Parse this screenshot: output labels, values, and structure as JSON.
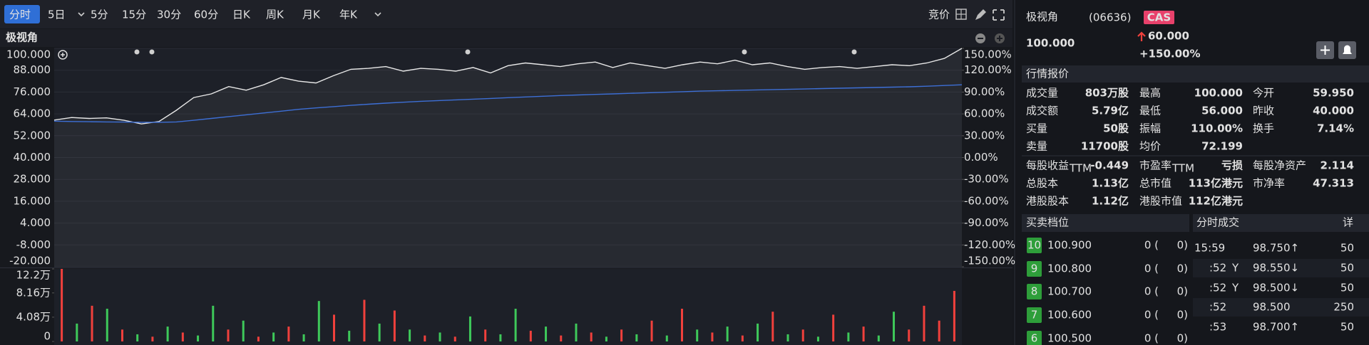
{
  "toolbar": {
    "tabs": [
      "分时",
      "5日",
      "5分",
      "15分",
      "30分",
      "60分",
      "日K",
      "周K",
      "月K",
      "年K"
    ],
    "auction": "竞价"
  },
  "chart_data": [
    {
      "type": "line",
      "title": "极视角",
      "ylim": [
        -20,
        100
      ],
      "yticks": [
        {
          "value": 100,
          "label": "100.000"
        },
        {
          "value": 88,
          "label": "88.000"
        },
        {
          "value": 76,
          "label": "76.000"
        },
        {
          "value": 64,
          "label": "64.000"
        },
        {
          "value": 52,
          "label": "52.000"
        },
        {
          "value": 40,
          "label": "40.000"
        },
        {
          "value": 28,
          "label": "28.000"
        },
        {
          "value": 16,
          "label": "16.000"
        },
        {
          "value": 4,
          "label": "4.000"
        },
        {
          "value": -8,
          "label": "-8.000"
        },
        {
          "value": -20,
          "label": "-20.000"
        }
      ],
      "y2lim": [
        -150,
        150
      ],
      "y2ticks": [
        {
          "value": 150,
          "label": "150.00%"
        },
        {
          "value": 120,
          "label": "120.00%"
        },
        {
          "value": 90,
          "label": "90.00%"
        },
        {
          "value": 60,
          "label": "60.00%"
        },
        {
          "value": 30,
          "label": "30.00%"
        },
        {
          "value": 0,
          "label": "0.00%"
        },
        {
          "value": -30,
          "label": "-30.00%"
        },
        {
          "value": -60,
          "label": "-60.00%"
        },
        {
          "value": -90,
          "label": "-90.00%"
        },
        {
          "value": -120,
          "label": "-120.00%"
        },
        {
          "value": -150,
          "label": "-150.00%"
        }
      ],
      "grid": true,
      "series": [
        {
          "color": "#e8e8e8",
          "values": [
            60.6,
            62,
            61.5,
            61.8,
            60.5,
            58.5,
            59.8,
            66,
            73,
            75,
            79,
            77,
            80,
            84,
            82,
            81,
            85,
            88.5,
            89,
            90,
            87.5,
            89,
            88.5,
            87.5,
            89.5,
            86.5,
            90.5,
            92,
            91,
            90,
            91.5,
            92.5,
            89.5,
            92,
            90.5,
            89,
            91,
            92.5,
            91.5,
            93.5,
            91,
            92,
            90,
            88.5,
            89.5,
            90,
            89,
            90,
            91,
            90.5,
            92,
            94.5,
            100
          ]
        },
        {
          "color": "#3d6fd6",
          "values": [
            60,
            59.8,
            59.7,
            59.6,
            59.5,
            59.4,
            59.4,
            59.6,
            60.5,
            61.5,
            62.5,
            63.5,
            64.5,
            65.5,
            66.5,
            67.3,
            68,
            68.7,
            69.3,
            69.9,
            70.4,
            70.9,
            71.3,
            71.7,
            72.1,
            72.5,
            72.9,
            73.3,
            73.7,
            74.1,
            74.4,
            74.7,
            75,
            75.3,
            75.6,
            75.9,
            76.2,
            76.5,
            76.7,
            76.9,
            77.1,
            77.3,
            77.5,
            77.7,
            77.9,
            78.1,
            78.3,
            78.5,
            78.7,
            78.9,
            79.2,
            79.6,
            80
          ]
        }
      ]
    },
    {
      "type": "bar",
      "ylim": [
        0,
        122000
      ],
      "yticks": [
        {
          "value": 122000,
          "label": "12.2万"
        },
        {
          "value": 81600,
          "label": "8.16万"
        },
        {
          "value": 40800,
          "label": "4.08万"
        },
        0
      ],
      "series": [
        {
          "color": "#f0403c",
          "values": [
            122000,
            null,
            60000,
            null,
            20000,
            null,
            8000,
            null,
            15000,
            null,
            null,
            20000,
            null,
            8000,
            null,
            25000,
            null,
            null,
            45000,
            null,
            70000,
            null,
            52000,
            null,
            10000,
            null,
            8000,
            null,
            20000,
            null,
            null,
            18000,
            null,
            10000,
            null,
            15000,
            null,
            20000,
            null,
            35000,
            null,
            55000,
            null,
            15000,
            null,
            10000,
            null,
            50000,
            null,
            20000,
            null,
            45000,
            null,
            25000,
            null,
            null,
            20000,
            60000,
            35000,
            85000
          ]
        },
        {
          "color": "#3ec95a",
          "values": [
            null,
            30000,
            null,
            55000,
            null,
            12000,
            null,
            25000,
            null,
            10000,
            60000,
            null,
            35000,
            null,
            15000,
            null,
            12000,
            68000,
            null,
            18000,
            null,
            30000,
            null,
            20000,
            null,
            15000,
            null,
            42000,
            null,
            12000,
            55000,
            null,
            25000,
            null,
            30000,
            null,
            8000,
            null,
            12000,
            null,
            10000,
            null,
            20000,
            null,
            25000,
            null,
            30000,
            null,
            12000,
            null,
            8000,
            null,
            15000,
            null,
            10000,
            50000,
            null,
            null,
            null,
            null
          ]
        }
      ]
    }
  ],
  "quote": {
    "name": "极视角",
    "code": "(06636)",
    "badge": "CAS",
    "price": "100.000",
    "change": "60.000",
    "change_pct": "+150.00%",
    "section": "行情报价",
    "rows": [
      [
        {
          "label": "成交量",
          "value": "803万股"
        },
        {
          "label": "最高",
          "value": "100.000",
          "color": "#f0403c"
        },
        {
          "label": "今开",
          "value": "59.950",
          "color": "#f0403c"
        }
      ],
      [
        {
          "label": "成交额",
          "value": "5.79亿"
        },
        {
          "label": "最低",
          "value": "56.000",
          "color": "#f0403c"
        },
        {
          "label": "昨收",
          "value": "40.000"
        }
      ],
      [
        {
          "label": "买量",
          "value": "50股",
          "color": "#f0403c"
        },
        {
          "label": "振幅",
          "value": "110.00%"
        },
        {
          "label": "换手",
          "value": "7.14%"
        }
      ],
      [
        {
          "label": "卖量",
          "value": "11700股",
          "color": "#3ec95a"
        },
        {
          "label": "均价",
          "value": "72.199",
          "color": "#f0403c"
        }
      ],
      [
        {
          "label": "每股收益",
          "sub": "TTM",
          "value": "-0.449"
        },
        {
          "label": "市盈率",
          "sub": "TTM",
          "value": "亏损"
        },
        {
          "label": "每股净资产",
          "value": "2.114"
        }
      ],
      [
        {
          "label": "总股本",
          "value": "1.13亿"
        },
        {
          "label": "总市值",
          "value": "113亿港元"
        },
        {
          "label": "市净率",
          "value": "47.313"
        }
      ],
      [
        {
          "label": "港股股本",
          "value": "1.12亿"
        },
        {
          "label": "港股市值",
          "value": "112亿港元"
        }
      ]
    ]
  },
  "order_book": {
    "title": "买卖档位",
    "rows": [
      {
        "level": "10",
        "price": "100.900",
        "volume": "0 (",
        "orders": "0)"
      },
      {
        "level": "9",
        "price": "100.800",
        "volume": "0 (",
        "orders": "0)"
      },
      {
        "level": "8",
        "price": "100.700",
        "volume": "0 (",
        "orders": "0)"
      },
      {
        "level": "7",
        "price": "100.600",
        "volume": "0 (",
        "orders": "0)"
      },
      {
        "level": "6",
        "price": "100.500",
        "volume": "0 (",
        "orders": "0)"
      }
    ]
  },
  "trades": {
    "title": "分时成交",
    "detail": "详",
    "rows": [
      {
        "time": "15:59",
        "price": "98.750↑",
        "volume": "50",
        "price_color": "#f0403c",
        "volume_color": "#f0403c"
      },
      {
        "time": ":52",
        "flag": "Y",
        "price": "98.550↓",
        "volume": "50",
        "price_color": "#f0403c",
        "volume_color": "#3ec95a"
      },
      {
        "time": ":52",
        "flag": "Y",
        "price": "98.500↓",
        "volume": "50",
        "price_color": "#f0403c",
        "volume_color": "#3ec95a"
      },
      {
        "time": ":52",
        "price": "98.500",
        "volume": "250",
        "price_color": "#dddddd",
        "volume_color": "#3ec95a"
      },
      {
        "time": ":53",
        "price": "98.700↑",
        "volume": "50",
        "price_color": "#f0403c",
        "volume_color": "#f0403c"
      }
    ]
  }
}
